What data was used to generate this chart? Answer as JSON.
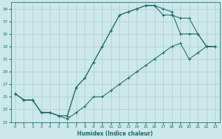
{
  "xlabel": "Humidex (Indice chaleur)",
  "xlim": [
    -0.5,
    23.5
  ],
  "ylim": [
    21,
    40
  ],
  "yticks": [
    21,
    23,
    25,
    27,
    29,
    31,
    33,
    35,
    37,
    39
  ],
  "xticks": [
    0,
    1,
    2,
    3,
    4,
    5,
    6,
    7,
    8,
    9,
    10,
    11,
    12,
    13,
    14,
    15,
    16,
    17,
    18,
    19,
    20,
    21,
    22,
    23
  ],
  "bg_color": "#cce8e8",
  "line_color": "#1a6b6b",
  "grid_color": "#aacccc",
  "lines": [
    {
      "x": [
        0,
        1,
        2,
        3,
        4,
        5,
        6,
        7,
        8,
        9,
        10,
        11,
        12,
        13,
        14,
        15,
        16,
        17,
        18,
        19,
        20,
        21,
        22,
        23
      ],
      "y": [
        25.5,
        24.5,
        24.5,
        22.5,
        22.5,
        22.0,
        22.0,
        26.5,
        28.0,
        30.5,
        33.0,
        35.5,
        38.0,
        38.5,
        39.0,
        39.5,
        39.5,
        39.0,
        38.5,
        35.0,
        35.0,
        35.0,
        33.0,
        33.0
      ]
    },
    {
      "x": [
        0,
        1,
        2,
        3,
        4,
        5,
        6,
        7,
        8,
        9,
        10,
        11,
        12,
        13,
        14,
        15,
        16,
        17,
        18,
        19,
        20,
        21,
        22,
        23
      ],
      "y": [
        25.5,
        24.5,
        24.5,
        22.5,
        22.5,
        22.0,
        22.0,
        26.5,
        28.0,
        30.5,
        33.0,
        35.5,
        38.0,
        38.5,
        39.0,
        39.5,
        39.5,
        38.0,
        38.0,
        37.5,
        37.5,
        35.0,
        33.0,
        33.0
      ]
    },
    {
      "x": [
        0,
        1,
        2,
        3,
        4,
        5,
        6,
        7,
        8,
        9,
        10,
        11,
        12,
        13,
        14,
        15,
        16,
        17,
        18,
        19,
        20,
        21,
        22,
        23
      ],
      "y": [
        25.5,
        24.5,
        24.5,
        22.5,
        22.5,
        22.0,
        21.5,
        22.5,
        23.5,
        25.0,
        25.0,
        26.0,
        27.0,
        28.0,
        29.0,
        30.0,
        31.0,
        32.0,
        33.0,
        33.5,
        31.0,
        32.0,
        33.0,
        33.0
      ]
    }
  ]
}
